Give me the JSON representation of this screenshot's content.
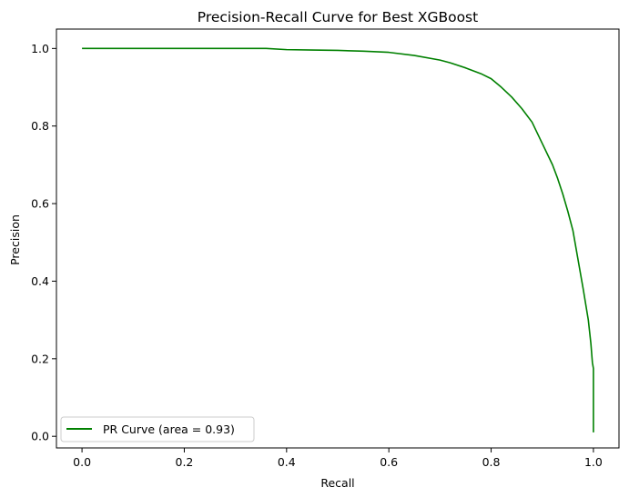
{
  "chart_data": {
    "type": "line",
    "title": "Precision-Recall Curve for Best XGBoost",
    "xlabel": "Recall",
    "ylabel": "Precision",
    "xlim": [
      -0.05,
      1.05
    ],
    "ylim": [
      -0.03,
      1.05
    ],
    "xticks": [
      0.0,
      0.2,
      0.4,
      0.6,
      0.8,
      1.0
    ],
    "xtick_labels": [
      "0.0",
      "0.2",
      "0.4",
      "0.6",
      "0.8",
      "1.0"
    ],
    "yticks": [
      0.0,
      0.2,
      0.4,
      0.6,
      0.8,
      1.0
    ],
    "ytick_labels": [
      "0.0",
      "0.2",
      "0.4",
      "0.6",
      "0.8",
      "1.0"
    ],
    "grid": false,
    "legend_position": "lower-left",
    "series": [
      {
        "name": "PR Curve (area = 0.93)",
        "color": "#008000",
        "points": [
          [
            0.0,
            1.0
          ],
          [
            0.05,
            1.0
          ],
          [
            0.1,
            1.0
          ],
          [
            0.2,
            1.0
          ],
          [
            0.3,
            1.0
          ],
          [
            0.36,
            1.0
          ],
          [
            0.4,
            0.997
          ],
          [
            0.45,
            0.996
          ],
          [
            0.5,
            0.995
          ],
          [
            0.55,
            0.993
          ],
          [
            0.6,
            0.99
          ],
          [
            0.65,
            0.982
          ],
          [
            0.7,
            0.97
          ],
          [
            0.72,
            0.963
          ],
          [
            0.75,
            0.95
          ],
          [
            0.78,
            0.935
          ],
          [
            0.8,
            0.922
          ],
          [
            0.82,
            0.9
          ],
          [
            0.84,
            0.875
          ],
          [
            0.86,
            0.845
          ],
          [
            0.88,
            0.81
          ],
          [
            0.9,
            0.755
          ],
          [
            0.92,
            0.7
          ],
          [
            0.93,
            0.665
          ],
          [
            0.94,
            0.625
          ],
          [
            0.95,
            0.58
          ],
          [
            0.96,
            0.53
          ],
          [
            0.97,
            0.455
          ],
          [
            0.98,
            0.38
          ],
          [
            0.99,
            0.3
          ],
          [
            0.995,
            0.24
          ],
          [
            0.998,
            0.19
          ],
          [
            1.0,
            0.175
          ],
          [
            1.0,
            0.01
          ]
        ]
      }
    ]
  }
}
